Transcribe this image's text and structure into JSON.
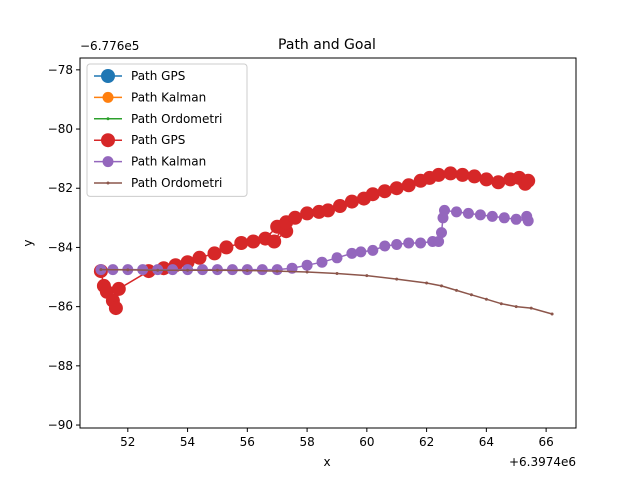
{
  "chart_data": {
    "type": "line",
    "title": "Path and Goal",
    "xlabel": "x",
    "ylabel": "y",
    "x_offset_label": "+6.3974e6",
    "y_offset_label": "−6.776e5",
    "xlim": [
      50.4,
      67.0
    ],
    "ylim": [
      -90.1,
      -77.6
    ],
    "xticks": [
      52,
      54,
      56,
      58,
      60,
      62,
      64,
      66
    ],
    "yticks": [
      -90,
      -88,
      -86,
      -84,
      -82,
      -80,
      -78
    ],
    "xtick_labels": [
      "52",
      "54",
      "56",
      "58",
      "60",
      "62",
      "64",
      "66"
    ],
    "ytick_labels": [
      "−90",
      "−88",
      "−86",
      "−84",
      "−82",
      "−80",
      "−78"
    ],
    "grid": false,
    "legend_position": "top-left",
    "series": [
      {
        "name": "Path GPS",
        "color": "#1f77b4",
        "marker": "large-circle",
        "x": [],
        "y": []
      },
      {
        "name": "Path Kalman",
        "color": "#ff7f0e",
        "marker": "medium-circle",
        "x": [],
        "y": []
      },
      {
        "name": "Path Ordometri",
        "color": "#2ca02c",
        "marker": "small-dot",
        "x": [],
        "y": []
      },
      {
        "name": "Path GPS",
        "color": "#d62728",
        "marker": "large-circle",
        "x": [
          51.1,
          51.2,
          51.3,
          51.5,
          51.6,
          51.7,
          52.7,
          53.2,
          53.6,
          54.0,
          54.4,
          54.9,
          55.3,
          55.8,
          56.2,
          56.6,
          57.0,
          57.3,
          56.9,
          57.3,
          57.6,
          58.0,
          58.4,
          58.7,
          59.1,
          59.5,
          59.9,
          60.2,
          60.6,
          61.0,
          61.4,
          61.8,
          62.1,
          62.4,
          62.8,
          63.2,
          63.6,
          64.0,
          64.4,
          64.8,
          65.1,
          65.3,
          65.4
        ],
        "y": [
          -84.8,
          -85.3,
          -85.5,
          -85.8,
          -86.05,
          -85.4,
          -84.8,
          -84.7,
          -84.6,
          -84.5,
          -84.35,
          -84.2,
          -84.0,
          -83.85,
          -83.8,
          -83.7,
          -83.3,
          -83.45,
          -83.8,
          -83.15,
          -83.0,
          -82.85,
          -82.8,
          -82.75,
          -82.6,
          -82.45,
          -82.35,
          -82.2,
          -82.1,
          -82.0,
          -81.9,
          -81.75,
          -81.65,
          -81.55,
          -81.5,
          -81.55,
          -81.6,
          -81.7,
          -81.8,
          -81.7,
          -81.65,
          -81.85,
          -81.75
        ]
      },
      {
        "name": "Path Kalman",
        "color": "#9467bd",
        "marker": "medium-circle",
        "x": [
          51.1,
          51.5,
          52.0,
          52.5,
          53.0,
          53.5,
          54.0,
          54.5,
          55.0,
          55.5,
          56.0,
          56.5,
          57.0,
          57.5,
          58.0,
          58.5,
          59.0,
          59.5,
          59.8,
          60.2,
          60.6,
          61.0,
          61.4,
          61.8,
          62.2,
          62.4,
          62.5,
          62.55,
          62.6,
          63.0,
          63.4,
          63.8,
          64.2,
          64.6,
          65.0,
          65.4,
          65.35
        ],
        "y": [
          -84.75,
          -84.75,
          -84.75,
          -84.75,
          -84.75,
          -84.75,
          -84.75,
          -84.75,
          -84.75,
          -84.75,
          -84.75,
          -84.75,
          -84.75,
          -84.7,
          -84.6,
          -84.5,
          -84.35,
          -84.2,
          -84.15,
          -84.1,
          -83.95,
          -83.9,
          -83.85,
          -83.85,
          -83.8,
          -83.8,
          -83.5,
          -83.0,
          -82.75,
          -82.8,
          -82.85,
          -82.9,
          -82.95,
          -83.0,
          -83.05,
          -83.1,
          -82.95
        ]
      },
      {
        "name": "Path Ordometri",
        "color": "#8c564b",
        "marker": "small-dot",
        "x": [
          51.1,
          52.0,
          53.0,
          54.0,
          55.0,
          56.0,
          57.0,
          58.0,
          59.0,
          60.0,
          61.0,
          62.0,
          62.5,
          63.0,
          63.5,
          64.0,
          64.5,
          65.0,
          65.5,
          66.2
        ],
        "y": [
          -84.75,
          -84.76,
          -84.77,
          -84.77,
          -84.77,
          -84.78,
          -84.8,
          -84.83,
          -84.88,
          -84.95,
          -85.07,
          -85.2,
          -85.3,
          -85.45,
          -85.6,
          -85.75,
          -85.9,
          -86.0,
          -86.05,
          -86.25
        ]
      }
    ]
  }
}
